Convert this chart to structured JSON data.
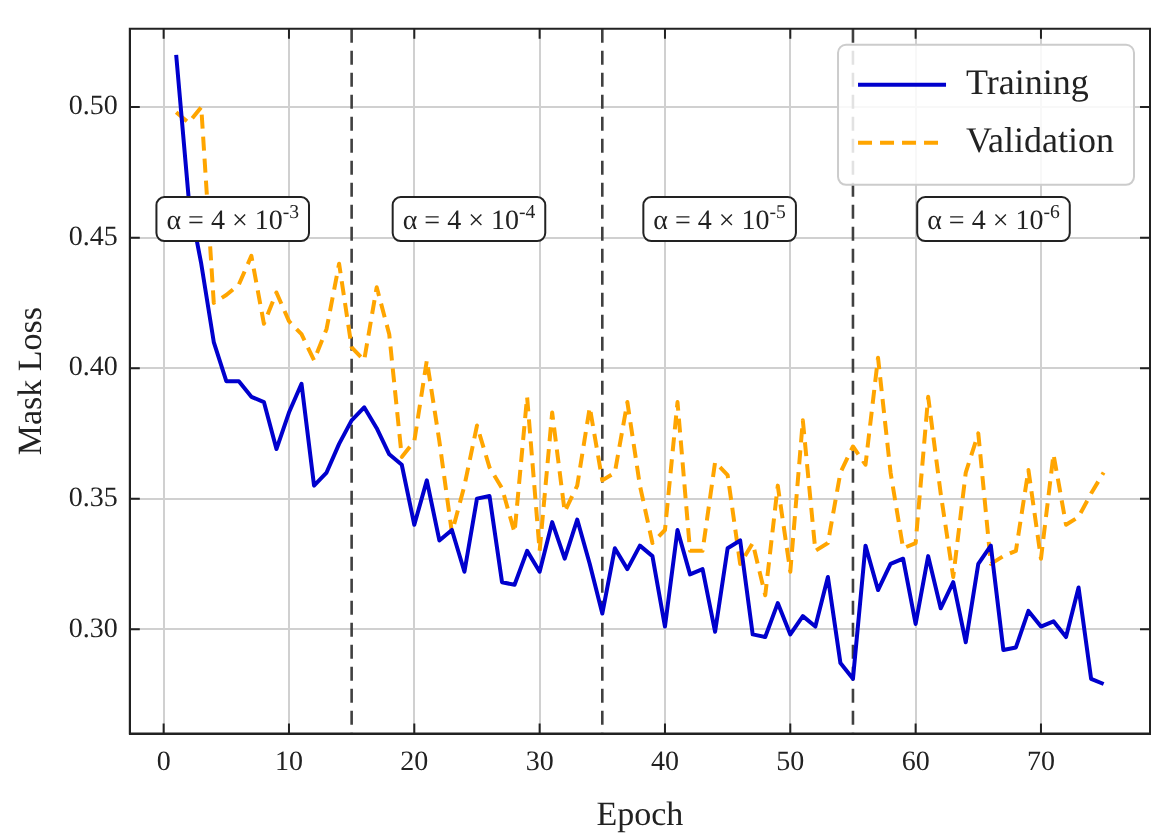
{
  "chart_data": {
    "type": "line",
    "xlabel": "Epoch",
    "ylabel": "Mask Loss",
    "x": [
      1,
      2,
      3,
      4,
      5,
      6,
      7,
      8,
      9,
      10,
      11,
      12,
      13,
      14,
      15,
      16,
      17,
      18,
      19,
      20,
      21,
      22,
      23,
      24,
      25,
      26,
      27,
      28,
      29,
      30,
      31,
      32,
      33,
      34,
      35,
      36,
      37,
      38,
      39,
      40,
      41,
      42,
      43,
      44,
      45,
      46,
      47,
      48,
      49,
      50,
      51,
      52,
      53,
      54,
      55,
      56,
      57,
      58,
      59,
      60,
      61,
      62,
      63,
      64,
      65,
      66,
      67,
      68,
      69,
      70,
      71,
      72,
      73,
      74,
      75
    ],
    "series": [
      {
        "name": "Training",
        "color": "#0000cd",
        "line_style": "solid",
        "values": [
          0.52,
          0.465,
          0.44,
          0.41,
          0.395,
          0.395,
          0.389,
          0.387,
          0.369,
          0.383,
          0.394,
          0.355,
          0.36,
          0.371,
          0.38,
          0.385,
          0.377,
          0.367,
          0.363,
          0.34,
          0.357,
          0.334,
          0.338,
          0.322,
          0.35,
          0.351,
          0.318,
          0.317,
          0.33,
          0.322,
          0.341,
          0.327,
          0.342,
          0.325,
          0.306,
          0.331,
          0.323,
          0.332,
          0.328,
          0.301,
          0.338,
          0.321,
          0.323,
          0.299,
          0.331,
          0.334,
          0.298,
          0.297,
          0.31,
          0.298,
          0.305,
          0.301,
          0.32,
          0.287,
          0.281,
          0.332,
          0.315,
          0.325,
          0.327,
          0.302,
          0.328,
          0.308,
          0.318,
          0.295,
          0.325,
          0.332,
          0.292,
          0.293,
          0.307,
          0.301,
          0.303,
          0.297,
          0.316,
          0.281,
          0.279
        ]
      },
      {
        "name": "Validation",
        "color": "#ffa500",
        "line_style": "dashed",
        "values": [
          0.498,
          0.494,
          0.5,
          0.425,
          0.428,
          0.432,
          0.443,
          0.417,
          0.429,
          0.418,
          0.413,
          0.403,
          0.415,
          0.44,
          0.408,
          0.403,
          0.431,
          0.413,
          0.366,
          0.372,
          0.403,
          0.372,
          0.337,
          0.355,
          0.378,
          0.362,
          0.354,
          0.337,
          0.389,
          0.33,
          0.383,
          0.345,
          0.355,
          0.385,
          0.357,
          0.36,
          0.387,
          0.355,
          0.333,
          0.338,
          0.387,
          0.33,
          0.33,
          0.364,
          0.359,
          0.325,
          0.333,
          0.313,
          0.355,
          0.322,
          0.38,
          0.33,
          0.333,
          0.36,
          0.37,
          0.363,
          0.404,
          0.36,
          0.331,
          0.333,
          0.389,
          0.352,
          0.32,
          0.36,
          0.375,
          0.325,
          0.328,
          0.33,
          0.361,
          0.327,
          0.367,
          0.34,
          0.343,
          0.352,
          0.36
        ]
      }
    ],
    "xlim": [
      -2.7,
      78.7
    ],
    "xticks": [
      0,
      10,
      20,
      30,
      40,
      50,
      60,
      70
    ],
    "ylim": [
      0.26,
      0.53
    ],
    "yticks": [
      {
        "value": 0.3,
        "label": "0.30"
      },
      0.35,
      {
        "value": 0.4,
        "label": "0.40"
      },
      0.45,
      {
        "value": 0.5,
        "label": "0.50"
      }
    ],
    "ref_lines": [
      {
        "axis": "x",
        "value": 15,
        "color": "#404040",
        "line_style": "dashed"
      },
      {
        "axis": "x",
        "value": 35,
        "color": "#404040",
        "line_style": "dashed"
      },
      {
        "axis": "x",
        "value": 55,
        "color": "#404040",
        "line_style": "dashed"
      }
    ],
    "annotations": [
      "α = 4 × 10$^{-3}$",
      "α = 4 × 10$^{-4}$",
      "α = 4 × 10$^{-5}$",
      "α = 4 × 10$^{-6}$"
    ],
    "grid": true,
    "legend": "top right",
    "marker": "none"
  }
}
